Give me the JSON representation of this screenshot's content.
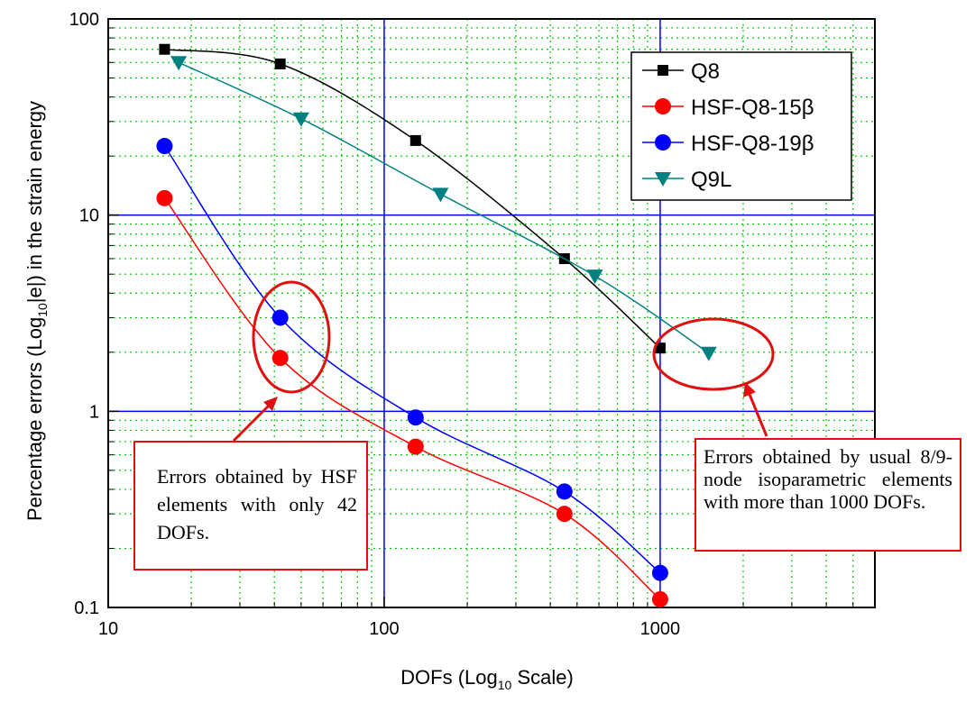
{
  "chart_data": {
    "type": "line",
    "xlabel": "DOFs (Log",
    "xlabel_sub": "10",
    "xlabel_end": " Scale)",
    "ylabel": "Percentage errors (Log",
    "ylabel_sub": "10",
    "ylabel_end": "|e|) in the strain energy",
    "x_scale": "log",
    "y_scale": "log",
    "xlim": [
      10,
      6000
    ],
    "ylim": [
      0.1,
      100
    ],
    "x_tick_labels": [
      "10",
      "100",
      "1000"
    ],
    "y_tick_labels": [
      "0.1",
      "1",
      "10",
      "100"
    ],
    "grid": true,
    "legend_position": "top-right",
    "series": [
      {
        "name": "Q8",
        "color": "#000000",
        "marker": "square",
        "x": [
          16,
          42,
          130,
          450,
          1000
        ],
        "y": [
          70,
          59,
          24,
          6.0,
          2.1
        ]
      },
      {
        "name": "HSF-Q8-15β",
        "color": "#ff0000",
        "marker": "circle",
        "x": [
          16,
          42,
          130,
          450,
          1000
        ],
        "y": [
          12.2,
          1.87,
          0.66,
          0.3,
          0.11
        ]
      },
      {
        "name": "HSF-Q8-19β",
        "color": "#0000ff",
        "marker": "circle",
        "x": [
          16,
          42,
          130,
          450,
          1000
        ],
        "y": [
          22.5,
          3.0,
          0.93,
          0.39,
          0.15
        ]
      },
      {
        "name": "Q9L",
        "color": "#008080",
        "marker": "triangle-down",
        "x": [
          18,
          50,
          160,
          580,
          1500
        ],
        "y": [
          60,
          31,
          12.8,
          4.9,
          1.98
        ]
      }
    ],
    "annotations": [
      {
        "text": "Errors obtained by HSF elements with only 42 DOFs."
      },
      {
        "text": "Errors obtained by usual 8/9-node isoparametric elements with more than 1000 DOFs."
      }
    ]
  }
}
